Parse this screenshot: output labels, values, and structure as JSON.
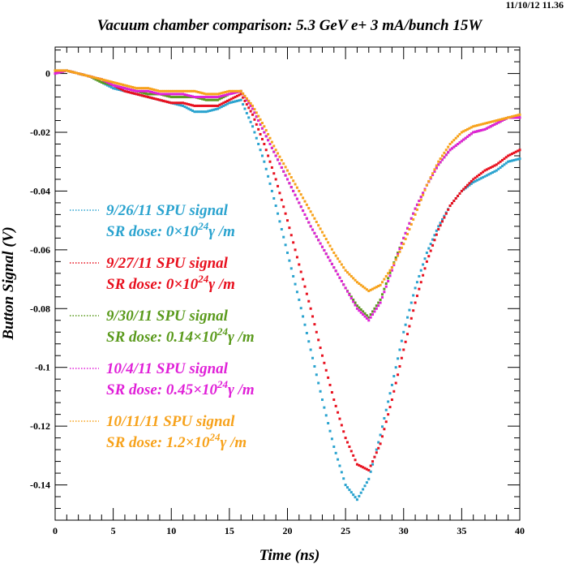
{
  "timestamp": "11/10/12  11.36",
  "chart_data": {
    "type": "scatter",
    "title": "Vacuum chamber comparison: 5.3 GeV  e+  3 mA/bunch 15W",
    "xlabel": "Time (ns)",
    "ylabel": "Button Signal (V)",
    "xlim": [
      0,
      40
    ],
    "ylim": [
      -0.152,
      0.009
    ],
    "xticks": [
      0,
      5,
      10,
      15,
      20,
      25,
      30,
      35,
      40
    ],
    "xtick_labels": [
      "0",
      "5",
      "10",
      "15",
      "20",
      "25",
      "30",
      "35",
      "40"
    ],
    "yticks": [
      0,
      -0.02,
      -0.04,
      -0.06,
      -0.08,
      -0.1,
      -0.12,
      -0.14
    ],
    "ytick_labels": [
      "0",
      "-0.02",
      "-0.04",
      "-0.06",
      "-0.08",
      "-0.1",
      "-0.12",
      "-0.14"
    ],
    "grid": false,
    "legend_position": "left-center",
    "series": [
      {
        "name": "9/26/11 SPU signal",
        "dose_prefix": "SR dose: 0×10",
        "dose_exp": "24",
        "dose_unit": "γ /m",
        "color": "#2aa3cf",
        "points": [
          [
            0,
            0.001
          ],
          [
            1,
            0.001
          ],
          [
            2,
            0.0
          ],
          [
            3,
            -0.001
          ],
          [
            4,
            -0.003
          ],
          [
            5,
            -0.005
          ],
          [
            6,
            -0.006
          ],
          [
            7,
            -0.007
          ],
          [
            8,
            -0.008
          ],
          [
            9,
            -0.009
          ],
          [
            10,
            -0.01
          ],
          [
            11,
            -0.011
          ],
          [
            12,
            -0.013
          ],
          [
            13,
            -0.013
          ],
          [
            14,
            -0.012
          ],
          [
            15,
            -0.01
          ],
          [
            16,
            -0.009
          ],
          [
            17,
            -0.018
          ],
          [
            18,
            -0.03
          ],
          [
            19,
            -0.045
          ],
          [
            20,
            -0.061
          ],
          [
            21,
            -0.077
          ],
          [
            22,
            -0.094
          ],
          [
            23,
            -0.111
          ],
          [
            24,
            -0.127
          ],
          [
            25,
            -0.14
          ],
          [
            26,
            -0.145
          ],
          [
            27,
            -0.138
          ],
          [
            28,
            -0.123
          ],
          [
            29,
            -0.106
          ],
          [
            30,
            -0.088
          ],
          [
            31,
            -0.073
          ],
          [
            32,
            -0.061
          ],
          [
            33,
            -0.052
          ],
          [
            34,
            -0.045
          ],
          [
            35,
            -0.04
          ],
          [
            36,
            -0.037
          ],
          [
            37,
            -0.035
          ],
          [
            38,
            -0.033
          ],
          [
            39,
            -0.03
          ],
          [
            40,
            -0.029
          ]
        ]
      },
      {
        "name": "9/27/11 SPU signal",
        "dose_prefix": "SR dose: 0×10",
        "dose_exp": "24",
        "dose_unit": "γ /m",
        "color": "#e8101e",
        "points": [
          [
            0,
            0.001
          ],
          [
            1,
            0.001
          ],
          [
            2,
            0.0
          ],
          [
            3,
            -0.001
          ],
          [
            4,
            -0.002
          ],
          [
            5,
            -0.004
          ],
          [
            6,
            -0.006
          ],
          [
            7,
            -0.007
          ],
          [
            8,
            -0.008
          ],
          [
            9,
            -0.009
          ],
          [
            10,
            -0.01
          ],
          [
            11,
            -0.01
          ],
          [
            12,
            -0.011
          ],
          [
            13,
            -0.011
          ],
          [
            14,
            -0.011
          ],
          [
            15,
            -0.009
          ],
          [
            16,
            -0.007
          ],
          [
            17,
            -0.014
          ],
          [
            18,
            -0.024
          ],
          [
            19,
            -0.036
          ],
          [
            20,
            -0.05
          ],
          [
            21,
            -0.065
          ],
          [
            22,
            -0.08
          ],
          [
            23,
            -0.096
          ],
          [
            24,
            -0.111
          ],
          [
            25,
            -0.124
          ],
          [
            26,
            -0.133
          ],
          [
            27,
            -0.135
          ],
          [
            28,
            -0.126
          ],
          [
            29,
            -0.111
          ],
          [
            30,
            -0.094
          ],
          [
            31,
            -0.078
          ],
          [
            32,
            -0.064
          ],
          [
            33,
            -0.053
          ],
          [
            34,
            -0.045
          ],
          [
            35,
            -0.04
          ],
          [
            36,
            -0.036
          ],
          [
            37,
            -0.033
          ],
          [
            38,
            -0.031
          ],
          [
            39,
            -0.028
          ],
          [
            40,
            -0.026
          ]
        ]
      },
      {
        "name": "9/30/11 SPU signal",
        "dose_prefix": "SR dose: 0.14×10",
        "dose_exp": "24",
        "dose_unit": "γ /m",
        "color": "#5a9a1c",
        "points": [
          [
            0,
            0.0
          ],
          [
            1,
            0.001
          ],
          [
            2,
            0.0
          ],
          [
            3,
            -0.001
          ],
          [
            4,
            -0.003
          ],
          [
            5,
            -0.004
          ],
          [
            6,
            -0.005
          ],
          [
            7,
            -0.006
          ],
          [
            8,
            -0.007
          ],
          [
            9,
            -0.007
          ],
          [
            10,
            -0.008
          ],
          [
            11,
            -0.008
          ],
          [
            12,
            -0.008
          ],
          [
            13,
            -0.009
          ],
          [
            14,
            -0.009
          ],
          [
            15,
            -0.007
          ],
          [
            16,
            -0.006
          ],
          [
            17,
            -0.012
          ],
          [
            18,
            -0.02
          ],
          [
            19,
            -0.028
          ],
          [
            20,
            -0.036
          ],
          [
            21,
            -0.044
          ],
          [
            22,
            -0.052
          ],
          [
            23,
            -0.059
          ],
          [
            24,
            -0.066
          ],
          [
            25,
            -0.073
          ],
          [
            26,
            -0.079
          ],
          [
            27,
            -0.083
          ],
          [
            28,
            -0.077
          ],
          [
            29,
            -0.066
          ],
          [
            30,
            -0.056
          ],
          [
            31,
            -0.046
          ],
          [
            32,
            -0.038
          ],
          [
            33,
            -0.031
          ],
          [
            34,
            -0.026
          ],
          [
            35,
            -0.023
          ],
          [
            36,
            -0.02
          ],
          [
            37,
            -0.019
          ],
          [
            38,
            -0.017
          ],
          [
            39,
            -0.015
          ],
          [
            40,
            -0.015
          ]
        ]
      },
      {
        "name": "10/4/11 SPU signal",
        "dose_prefix": "SR dose: 0.45×10",
        "dose_exp": "24",
        "dose_unit": "γ /m",
        "color": "#e020d8",
        "points": [
          [
            0,
            0.0
          ],
          [
            1,
            0.001
          ],
          [
            2,
            0.0
          ],
          [
            3,
            -0.001
          ],
          [
            4,
            -0.002
          ],
          [
            5,
            -0.004
          ],
          [
            6,
            -0.005
          ],
          [
            7,
            -0.006
          ],
          [
            8,
            -0.006
          ],
          [
            9,
            -0.007
          ],
          [
            10,
            -0.007
          ],
          [
            11,
            -0.007
          ],
          [
            12,
            -0.008
          ],
          [
            13,
            -0.008
          ],
          [
            14,
            -0.008
          ],
          [
            15,
            -0.007
          ],
          [
            16,
            -0.006
          ],
          [
            17,
            -0.012
          ],
          [
            18,
            -0.02
          ],
          [
            19,
            -0.028
          ],
          [
            20,
            -0.036
          ],
          [
            21,
            -0.044
          ],
          [
            22,
            -0.052
          ],
          [
            23,
            -0.059
          ],
          [
            24,
            -0.066
          ],
          [
            25,
            -0.073
          ],
          [
            26,
            -0.08
          ],
          [
            27,
            -0.084
          ],
          [
            28,
            -0.078
          ],
          [
            29,
            -0.067
          ],
          [
            30,
            -0.056
          ],
          [
            31,
            -0.046
          ],
          [
            32,
            -0.038
          ],
          [
            33,
            -0.031
          ],
          [
            34,
            -0.026
          ],
          [
            35,
            -0.023
          ],
          [
            36,
            -0.02
          ],
          [
            37,
            -0.019
          ],
          [
            38,
            -0.017
          ],
          [
            39,
            -0.015
          ],
          [
            40,
            -0.015
          ]
        ]
      },
      {
        "name": "10/11/11 SPU signal",
        "dose_prefix": "SR dose: 1.2×10",
        "dose_exp": "24",
        "dose_unit": "γ /m",
        "color": "#f7a21b",
        "points": [
          [
            0,
            0.001
          ],
          [
            1,
            0.001
          ],
          [
            2,
            0.0
          ],
          [
            3,
            -0.001
          ],
          [
            4,
            -0.002
          ],
          [
            5,
            -0.003
          ],
          [
            6,
            -0.004
          ],
          [
            7,
            -0.005
          ],
          [
            8,
            -0.005
          ],
          [
            9,
            -0.006
          ],
          [
            10,
            -0.006
          ],
          [
            11,
            -0.006
          ],
          [
            12,
            -0.006
          ],
          [
            13,
            -0.007
          ],
          [
            14,
            -0.007
          ],
          [
            15,
            -0.006
          ],
          [
            16,
            -0.006
          ],
          [
            17,
            -0.011
          ],
          [
            18,
            -0.018
          ],
          [
            19,
            -0.026
          ],
          [
            20,
            -0.033
          ],
          [
            21,
            -0.04
          ],
          [
            22,
            -0.047
          ],
          [
            23,
            -0.054
          ],
          [
            24,
            -0.061
          ],
          [
            25,
            -0.067
          ],
          [
            26,
            -0.071
          ],
          [
            27,
            -0.074
          ],
          [
            28,
            -0.072
          ],
          [
            29,
            -0.066
          ],
          [
            30,
            -0.058
          ],
          [
            31,
            -0.048
          ],
          [
            32,
            -0.038
          ],
          [
            33,
            -0.03
          ],
          [
            34,
            -0.024
          ],
          [
            35,
            -0.02
          ],
          [
            36,
            -0.018
          ],
          [
            37,
            -0.017
          ],
          [
            38,
            -0.016
          ],
          [
            39,
            -0.015
          ],
          [
            40,
            -0.014
          ]
        ]
      }
    ]
  }
}
